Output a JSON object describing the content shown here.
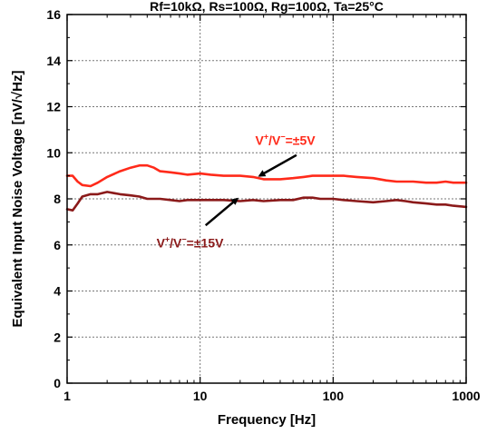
{
  "chart_data": {
    "type": "line",
    "title": "Rf=10kΩ, Rs=100Ω, Rg=100Ω, Ta=25°C",
    "xlabel": "Frequency [Hz]",
    "ylabel": "Equivalent Input Noise Voltage [nV/√Hz]",
    "xscale": "log",
    "xlim": [
      1,
      1000
    ],
    "ylim": [
      0,
      16
    ],
    "xticks": [
      1,
      10,
      100,
      1000
    ],
    "xtick_labels": [
      "1",
      "10",
      "100",
      "1000"
    ],
    "yticks": [
      0,
      2,
      4,
      6,
      8,
      10,
      12,
      14,
      16
    ],
    "ytick_labels": [
      "0",
      "2",
      "4",
      "6",
      "8",
      "10",
      "12",
      "14",
      "16"
    ],
    "grid": true,
    "legend": "annotations",
    "series": [
      {
        "name": "V⁺/V⁻=±5V",
        "color": "#ff2a1a",
        "x": [
          1,
          1.1,
          1.2,
          1.3,
          1.5,
          1.7,
          2,
          2.5,
          3,
          3.5,
          4,
          4.5,
          5,
          6,
          7,
          8,
          10,
          12,
          15,
          20,
          25,
          30,
          40,
          50,
          60,
          70,
          80,
          100,
          120,
          150,
          200,
          250,
          300,
          400,
          500,
          600,
          700,
          800,
          1000
        ],
        "values": [
          9.0,
          9.0,
          8.75,
          8.6,
          8.55,
          8.7,
          8.95,
          9.2,
          9.35,
          9.45,
          9.45,
          9.35,
          9.2,
          9.15,
          9.1,
          9.05,
          9.1,
          9.05,
          9.0,
          9.0,
          8.95,
          8.85,
          8.85,
          8.9,
          8.95,
          9.0,
          9.0,
          9.0,
          9.0,
          8.95,
          8.9,
          8.8,
          8.75,
          8.75,
          8.7,
          8.7,
          8.75,
          8.7,
          8.7
        ]
      },
      {
        "name": "V⁺/V⁻=±15V",
        "color": "#8b1a1a",
        "x": [
          1,
          1.1,
          1.2,
          1.3,
          1.5,
          1.7,
          2,
          2.5,
          3,
          3.5,
          4,
          5,
          6,
          7,
          8,
          10,
          12,
          15,
          20,
          25,
          30,
          40,
          50,
          60,
          70,
          80,
          100,
          120,
          150,
          200,
          250,
          300,
          350,
          400,
          500,
          600,
          700,
          800,
          1000
        ],
        "values": [
          7.55,
          7.5,
          7.8,
          8.1,
          8.2,
          8.2,
          8.3,
          8.2,
          8.15,
          8.1,
          8.0,
          8.0,
          7.95,
          7.9,
          7.95,
          7.95,
          7.95,
          7.95,
          7.9,
          7.95,
          7.9,
          7.95,
          7.95,
          8.05,
          8.05,
          8.0,
          8.0,
          7.95,
          7.9,
          7.85,
          7.9,
          7.95,
          7.9,
          7.85,
          7.8,
          7.75,
          7.75,
          7.7,
          7.65
        ]
      }
    ],
    "annotations": [
      {
        "text": "V⁺/V⁻=±5V",
        "color": "#ff2a1a"
      },
      {
        "text": "V⁺/V⁻=±15V",
        "color": "#8b1a1a"
      }
    ]
  }
}
